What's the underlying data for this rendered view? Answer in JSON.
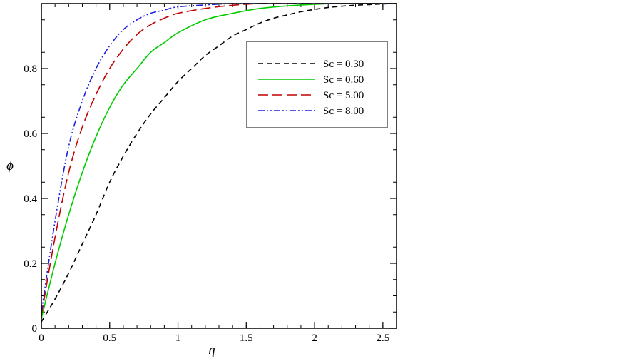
{
  "chart_data": {
    "type": "line",
    "xlabel": "η",
    "ylabel": "ϕ",
    "xlim": [
      0,
      2.6
    ],
    "ylim": [
      0,
      1.0
    ],
    "x_ticks": [
      {
        "value": 0,
        "label": "0"
      },
      {
        "value": 0.5,
        "label": "0.5"
      },
      {
        "value": 1,
        "label": "1"
      },
      {
        "value": 1.5,
        "label": "1.5"
      },
      {
        "value": 2,
        "label": "2"
      },
      {
        "value": 2.5,
        "label": "2.5"
      }
    ],
    "y_ticks": [
      {
        "value": 0,
        "label": "0"
      },
      {
        "value": 0.2,
        "label": "0.2"
      },
      {
        "value": 0.4,
        "label": "0.4"
      },
      {
        "value": 0.6,
        "label": "0.6"
      },
      {
        "value": 0.8,
        "label": "0.8"
      }
    ],
    "x_minor_step": 0.1,
    "y_minor_step": 0.05,
    "grid": false,
    "legend_position": "top-right",
    "series": [
      {
        "name": "Sc = 0.30",
        "color": "#000000",
        "dash": "dashed",
        "x": [
          0,
          0.1,
          0.2,
          0.3,
          0.4,
          0.5,
          0.6,
          0.7,
          0.8,
          0.9,
          1.0,
          1.1,
          1.2,
          1.3,
          1.4,
          1.5,
          1.6,
          1.7,
          1.8,
          1.9,
          2.0,
          2.1,
          2.2,
          2.3,
          2.4,
          2.5,
          2.6
        ],
        "y": [
          0.02,
          0.09,
          0.17,
          0.26,
          0.35,
          0.45,
          0.53,
          0.6,
          0.66,
          0.71,
          0.76,
          0.8,
          0.84,
          0.87,
          0.9,
          0.92,
          0.94,
          0.955,
          0.965,
          0.975,
          0.982,
          0.988,
          0.992,
          0.995,
          0.997,
          0.999,
          1.0
        ]
      },
      {
        "name": "Sc = 0.60",
        "color": "#00cc00",
        "dash": "solid",
        "x": [
          0,
          0.1,
          0.2,
          0.3,
          0.4,
          0.5,
          0.6,
          0.7,
          0.8,
          0.9,
          1.0,
          1.2,
          1.4,
          1.6,
          1.8,
          2.0,
          2.2,
          2.6
        ],
        "y": [
          0.03,
          0.2,
          0.35,
          0.48,
          0.59,
          0.68,
          0.75,
          0.8,
          0.85,
          0.88,
          0.91,
          0.95,
          0.97,
          0.985,
          0.993,
          0.998,
          1.0,
          1.0
        ]
      },
      {
        "name": "Sc = 5.00",
        "color": "#c00000",
        "dash": "longdash",
        "x": [
          0,
          0.1,
          0.2,
          0.3,
          0.4,
          0.5,
          0.6,
          0.7,
          0.8,
          0.9,
          1.0,
          1.2,
          1.4,
          1.6,
          1.8,
          2.6
        ],
        "y": [
          0.04,
          0.28,
          0.48,
          0.62,
          0.72,
          0.8,
          0.86,
          0.905,
          0.935,
          0.955,
          0.97,
          0.985,
          0.995,
          1.0,
          1.0,
          1.0
        ]
      },
      {
        "name": "Sc = 8.00",
        "color": "#2020e0",
        "dash": "dashdotdot",
        "x": [
          0,
          0.1,
          0.2,
          0.3,
          0.4,
          0.5,
          0.6,
          0.7,
          0.8,
          0.9,
          1.0,
          1.2,
          1.4,
          1.6,
          2.6
        ],
        "y": [
          0.05,
          0.33,
          0.56,
          0.7,
          0.8,
          0.87,
          0.92,
          0.95,
          0.97,
          0.98,
          0.99,
          0.996,
          1.0,
          1.0,
          1.0
        ]
      }
    ]
  }
}
